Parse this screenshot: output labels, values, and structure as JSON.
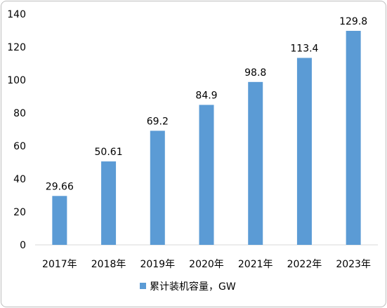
{
  "chart_data": {
    "type": "bar",
    "categories": [
      "2017年",
      "2018年",
      "2019年",
      "2020年",
      "2021年",
      "2022年",
      "2023年"
    ],
    "series": [
      {
        "name": "累计装机容量，GW",
        "values": [
          29.66,
          50.61,
          69.2,
          84.9,
          98.8,
          113.4,
          129.8
        ],
        "labels": [
          "29.66",
          "50.61",
          "69.2",
          "84.9",
          "98.8",
          "113.4",
          "129.8"
        ],
        "color": "#5b9bd5"
      }
    ],
    "yticks": [
      "0",
      "20",
      "40",
      "60",
      "80",
      "100",
      "120",
      "140"
    ],
    "ylim": [
      0,
      140
    ],
    "grid": false,
    "legend_position": "bottom"
  }
}
